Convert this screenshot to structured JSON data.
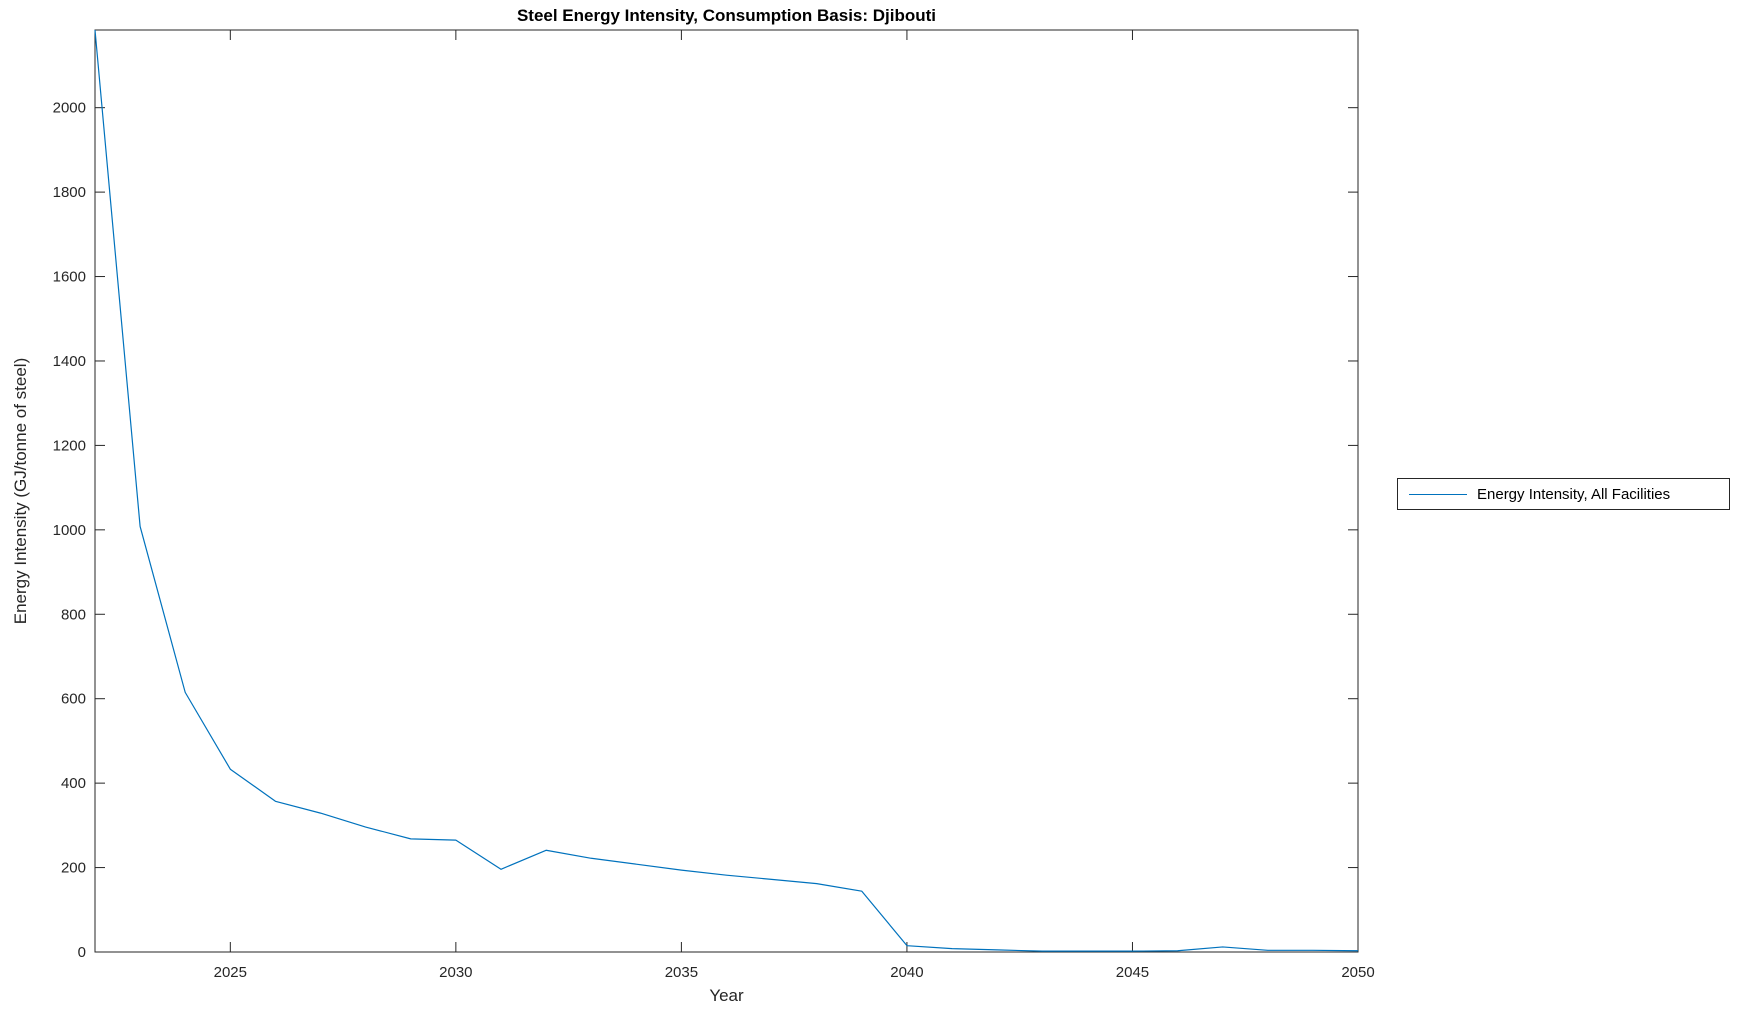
{
  "chart_data": {
    "type": "line",
    "title": "Steel Energy Intensity, Consumption Basis: Djibouti",
    "xlabel": "Year",
    "ylabel": "Energy Intensity (GJ/tonne of steel)",
    "xlim": [
      2022,
      2050
    ],
    "ylim": [
      0,
      2184
    ],
    "x_ticks": [
      2025,
      2030,
      2035,
      2040,
      2045,
      2050
    ],
    "y_ticks": [
      0,
      200,
      400,
      600,
      800,
      1000,
      1200,
      1400,
      1600,
      1800,
      2000
    ],
    "grid": false,
    "box": true,
    "tick_direction": "in",
    "line_color": "#0072BD",
    "axis_color": "#262626",
    "legend": {
      "position": "outside-right",
      "entries": [
        "Energy Intensity, All Facilities"
      ]
    },
    "series": [
      {
        "name": "Energy Intensity, All Facilities",
        "x": [
          2022,
          2023,
          2024,
          2025,
          2026,
          2027,
          2028,
          2029,
          2030,
          2031,
          2032,
          2033,
          2034,
          2035,
          2036,
          2037,
          2038,
          2039,
          2040,
          2041,
          2042,
          2043,
          2044,
          2045,
          2046,
          2047,
          2048,
          2049,
          2050
        ],
        "values": [
          2184,
          1008,
          615,
          433,
          357,
          329,
          296,
          268,
          265,
          196,
          241,
          222,
          208,
          194,
          182,
          172,
          162,
          144,
          15,
          8,
          5,
          2,
          2,
          2,
          3,
          12,
          4,
          4,
          3
        ]
      }
    ]
  }
}
